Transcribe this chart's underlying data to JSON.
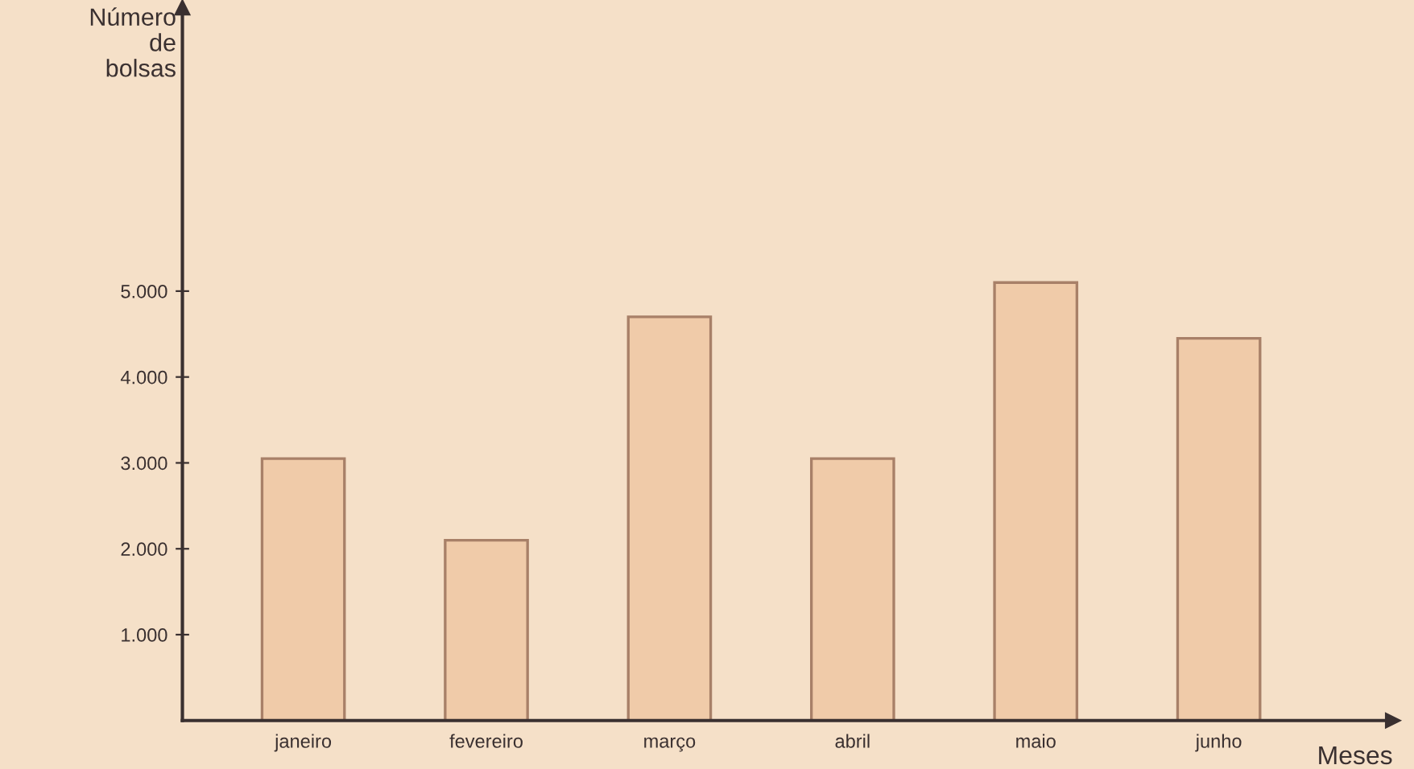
{
  "chart_data": {
    "type": "bar",
    "ylabel": "Número\nde\nbolsas",
    "xlabel": "Meses",
    "categories": [
      "janeiro",
      "fevereiro",
      "março",
      "abril",
      "maio",
      "junho"
    ],
    "values": [
      3050,
      2100,
      4700,
      3050,
      5100,
      4450
    ],
    "color": "#f0cba9",
    "ylim": [
      0,
      8300
    ],
    "yticks": [
      {
        "value": 1000,
        "label": "1.000"
      },
      {
        "value": 2000,
        "label": "2.000"
      },
      {
        "value": 3000,
        "label": "3.000"
      },
      {
        "value": 4000,
        "label": "4.000"
      },
      {
        "value": 5000,
        "label": "5.000"
      }
    ],
    "grid": false,
    "legend": false
  }
}
